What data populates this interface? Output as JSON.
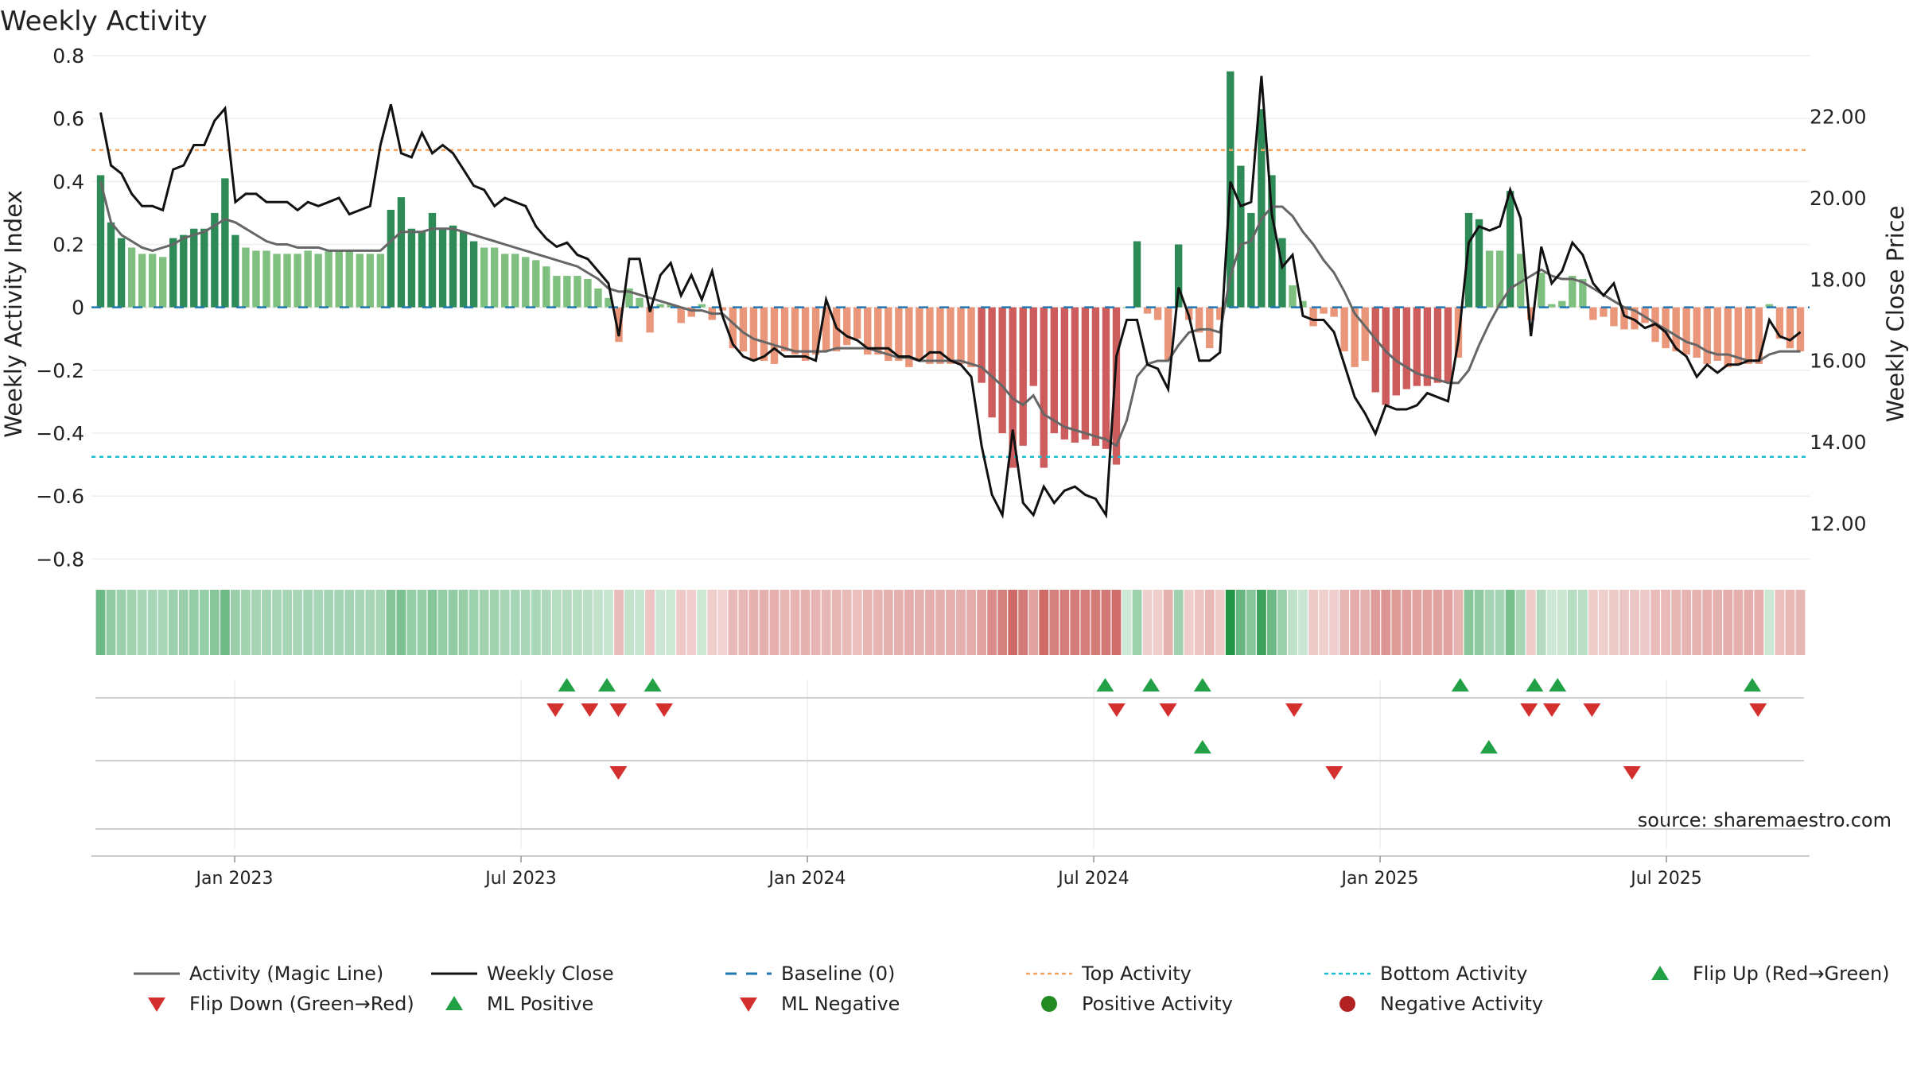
{
  "chart_data": {
    "type": "bar",
    "title": "Weekly Activity",
    "ylabel": "Weekly Activity Index",
    "y2label": "Weekly Close Price",
    "source": "source: sharemaestro.com",
    "ylim": [
      -0.88,
      0.8
    ],
    "y2lim": [
      10.5,
      23.5
    ],
    "yticks": [
      0.8,
      0.6,
      0.4,
      0.2,
      0,
      -0.2,
      -0.4,
      -0.6,
      -0.8
    ],
    "ytick_labels": [
      "0.8",
      "0.6",
      "0.4",
      "0.2",
      "0",
      "−0.2",
      "−0.4",
      "−0.6",
      "−0.8"
    ],
    "y2ticks": [
      22,
      20,
      18,
      16,
      14,
      12
    ],
    "y2tick_labels": [
      "22.00",
      "20.00",
      "18.00",
      "16.00",
      "14.00",
      "12.00"
    ],
    "x_range": [
      2022.75,
      2025.75
    ],
    "xticks": [
      2023.0,
      2023.5,
      2024.0,
      2024.5,
      2025.0,
      2025.5
    ],
    "xtick_labels": [
      "Jan 2023",
      "Jul 2023",
      "Jan 2024",
      "Jul 2024",
      "Jan 2025",
      "Jul 2025"
    ],
    "top_activity": 0.5,
    "bottom_activity": -0.475,
    "colors": {
      "strong_up": "#2e8b57",
      "weak_up": "#7fbf7f",
      "strong_down": "#cd5c5c",
      "weak_down": "#e9967a",
      "magic_line": "#666666",
      "close_line": "#111111",
      "baseline": "#1f77b4",
      "top_line": "#f4a460",
      "bottom_line": "#17becf",
      "marker_up": "#22a045",
      "marker_down": "#d32f2f",
      "axis": "#cccccc"
    },
    "series": [
      {
        "name": "Activity",
        "values": [
          0.42,
          0.27,
          0.22,
          0.19,
          0.17,
          0.17,
          0.16,
          0.22,
          0.23,
          0.25,
          0.25,
          0.3,
          0.41,
          0.23,
          0.19,
          0.18,
          0.18,
          0.17,
          0.17,
          0.17,
          0.18,
          0.17,
          0.18,
          0.18,
          0.18,
          0.17,
          0.17,
          0.17,
          0.31,
          0.35,
          0.25,
          0.24,
          0.3,
          0.25,
          0.26,
          0.24,
          0.21,
          0.19,
          0.19,
          0.17,
          0.17,
          0.16,
          0.15,
          0.13,
          0.1,
          0.1,
          0.1,
          0.09,
          0.06,
          0.03,
          -0.11,
          0.06,
          0.03,
          -0.08,
          0.01,
          0.01,
          -0.05,
          -0.03,
          0.01,
          -0.04,
          -0.01,
          -0.13,
          -0.14,
          -0.17,
          -0.17,
          -0.18,
          -0.14,
          -0.15,
          -0.17,
          -0.15,
          -0.14,
          -0.14,
          -0.12,
          -0.1,
          -0.15,
          -0.15,
          -0.17,
          -0.17,
          -0.19,
          -0.17,
          -0.18,
          -0.18,
          -0.18,
          -0.18,
          -0.19,
          -0.24,
          -0.35,
          -0.4,
          -0.51,
          -0.44,
          -0.25,
          -0.51,
          -0.4,
          -0.42,
          -0.43,
          -0.42,
          -0.44,
          -0.45,
          -0.5,
          0.0,
          0.21,
          -0.02,
          -0.04,
          -0.17,
          0.2,
          -0.04,
          -0.08,
          -0.13,
          -0.04,
          0.75,
          0.45,
          0.3,
          0.63,
          0.42,
          0.22,
          0.07,
          0.02,
          -0.06,
          -0.02,
          -0.03,
          -0.14,
          -0.19,
          -0.17,
          -0.27,
          -0.31,
          -0.28,
          -0.26,
          -0.25,
          -0.25,
          -0.24,
          -0.24,
          -0.16,
          0.3,
          0.28,
          0.18,
          0.18,
          0.37,
          0.17,
          -0.04,
          0.11,
          0.01,
          0.02,
          0.1,
          0.09,
          -0.04,
          -0.03,
          -0.06,
          -0.07,
          -0.07,
          -0.05,
          -0.11,
          -0.13,
          -0.14,
          -0.15,
          -0.16,
          -0.18,
          -0.17,
          -0.19,
          -0.18,
          -0.18,
          -0.18,
          0.01,
          -0.1,
          -0.13,
          -0.14
        ]
      },
      {
        "name": "Activity (Magic Line)",
        "values": [
          0.4,
          0.27,
          0.23,
          0.21,
          0.19,
          0.18,
          0.19,
          0.2,
          0.22,
          0.23,
          0.24,
          0.26,
          0.28,
          0.27,
          0.25,
          0.23,
          0.21,
          0.2,
          0.2,
          0.19,
          0.19,
          0.19,
          0.18,
          0.18,
          0.18,
          0.18,
          0.18,
          0.18,
          0.21,
          0.24,
          0.24,
          0.24,
          0.25,
          0.25,
          0.25,
          0.24,
          0.23,
          0.22,
          0.21,
          0.2,
          0.19,
          0.18,
          0.17,
          0.16,
          0.15,
          0.14,
          0.13,
          0.11,
          0.09,
          0.06,
          0.05,
          0.05,
          0.04,
          0.03,
          0.02,
          0.01,
          0.0,
          -0.01,
          -0.01,
          -0.02,
          -0.02,
          -0.05,
          -0.08,
          -0.1,
          -0.11,
          -0.12,
          -0.13,
          -0.14,
          -0.14,
          -0.14,
          -0.14,
          -0.13,
          -0.13,
          -0.13,
          -0.13,
          -0.14,
          -0.15,
          -0.16,
          -0.16,
          -0.17,
          -0.17,
          -0.17,
          -0.17,
          -0.17,
          -0.18,
          -0.19,
          -0.22,
          -0.25,
          -0.29,
          -0.31,
          -0.28,
          -0.34,
          -0.36,
          -0.38,
          -0.39,
          -0.4,
          -0.41,
          -0.42,
          -0.44,
          -0.36,
          -0.22,
          -0.18,
          -0.17,
          -0.17,
          -0.12,
          -0.08,
          -0.07,
          -0.07,
          -0.08,
          0.1,
          0.2,
          0.21,
          0.28,
          0.32,
          0.32,
          0.29,
          0.24,
          0.2,
          0.15,
          0.11,
          0.05,
          -0.02,
          -0.06,
          -0.1,
          -0.14,
          -0.17,
          -0.19,
          -0.21,
          -0.22,
          -0.23,
          -0.24,
          -0.24,
          -0.2,
          -0.12,
          -0.05,
          0.01,
          0.06,
          0.08,
          0.1,
          0.12,
          0.1,
          0.09,
          0.09,
          0.08,
          0.06,
          0.04,
          0.02,
          0.0,
          -0.01,
          -0.03,
          -0.05,
          -0.07,
          -0.09,
          -0.11,
          -0.12,
          -0.14,
          -0.15,
          -0.15,
          -0.16,
          -0.17,
          -0.17,
          -0.15,
          -0.14,
          -0.14,
          -0.14
        ]
      },
      {
        "name": "Weekly Close",
        "values": [
          22.1,
          20.8,
          20.6,
          20.1,
          19.8,
          19.8,
          19.7,
          20.7,
          20.8,
          21.3,
          21.3,
          21.9,
          22.2,
          19.9,
          20.1,
          20.1,
          19.9,
          19.9,
          19.9,
          19.7,
          19.9,
          19.8,
          19.9,
          20.0,
          19.6,
          19.7,
          19.8,
          21.3,
          22.3,
          21.1,
          21.0,
          21.6,
          21.1,
          21.3,
          21.1,
          20.7,
          20.3,
          20.2,
          19.8,
          20.0,
          19.9,
          19.8,
          19.3,
          19.0,
          18.8,
          18.9,
          18.6,
          18.5,
          18.2,
          17.9,
          16.6,
          18.5,
          18.5,
          17.2,
          18.1,
          18.4,
          17.6,
          18.1,
          17.5,
          18.2,
          17.1,
          16.4,
          16.1,
          16.0,
          16.1,
          16.3,
          16.1,
          16.1,
          16.1,
          16.0,
          17.5,
          16.8,
          16.6,
          16.5,
          16.3,
          16.3,
          16.3,
          16.1,
          16.1,
          16.0,
          16.2,
          16.2,
          16.0,
          15.9,
          15.6,
          13.9,
          12.7,
          12.2,
          14.3,
          12.5,
          12.2,
          12.9,
          12.5,
          12.8,
          12.9,
          12.7,
          12.6,
          12.2,
          16.1,
          17.0,
          17.0,
          15.9,
          15.8,
          15.3,
          17.8,
          17.1,
          16.0,
          16.0,
          16.2,
          20.4,
          19.8,
          19.9,
          23.0,
          19.6,
          18.3,
          18.6,
          17.1,
          17.0,
          17.0,
          16.7,
          15.9,
          15.1,
          14.7,
          14.2,
          14.9,
          14.8,
          14.8,
          14.9,
          15.2,
          15.1,
          15.0,
          16.5,
          18.9,
          19.3,
          19.2,
          19.3,
          20.2,
          19.5,
          16.6,
          18.8,
          17.9,
          18.2,
          18.9,
          18.6,
          17.9,
          17.6,
          17.9,
          17.1,
          17.0,
          16.8,
          16.9,
          16.7,
          16.3,
          16.1,
          15.6,
          15.9,
          15.7,
          15.9,
          15.9,
          16.0,
          16.0,
          17.0,
          16.6,
          16.5,
          16.7
        ]
      }
    ],
    "flip_up_1": [
      2023.58,
      2023.65,
      2023.73,
      2024.52,
      2024.6,
      2024.69,
      2025.14,
      2025.27,
      2025.31,
      2025.65
    ],
    "flip_down_1": [
      2023.56,
      2023.62,
      2023.67,
      2023.75,
      2024.54,
      2024.63,
      2024.85,
      2025.26,
      2025.3,
      2025.37,
      2025.66
    ],
    "flip_up_2": [
      2024.69,
      2025.19
    ],
    "flip_down_2": [
      2023.67,
      2024.92,
      2025.44
    ],
    "legend": [
      {
        "label": "Activity (Magic Line)",
        "kind": "solid",
        "color": "#666666"
      },
      {
        "label": "Weekly Close",
        "kind": "solid",
        "color": "#111111"
      },
      {
        "label": "Baseline (0)",
        "kind": "dash",
        "color": "#1f77b4"
      },
      {
        "label": "Top Activity",
        "kind": "dot",
        "color": "#f4a460"
      },
      {
        "label": "Bottom Activity",
        "kind": "dot",
        "color": "#17becf"
      },
      {
        "label": "Flip Up (Red→Green)",
        "kind": "tri-up",
        "color": "#22a045"
      },
      {
        "label": "Flip Down (Green→Red)",
        "kind": "tri-down",
        "color": "#d32f2f"
      },
      {
        "label": "ML Positive",
        "kind": "tri-up",
        "color": "#22a045"
      },
      {
        "label": "ML Negative",
        "kind": "tri-down",
        "color": "#d32f2f"
      },
      {
        "label": "Positive Activity",
        "kind": "circle",
        "color": "#228b22"
      },
      {
        "label": "Negative Activity",
        "kind": "circle",
        "color": "#b22222"
      }
    ]
  }
}
